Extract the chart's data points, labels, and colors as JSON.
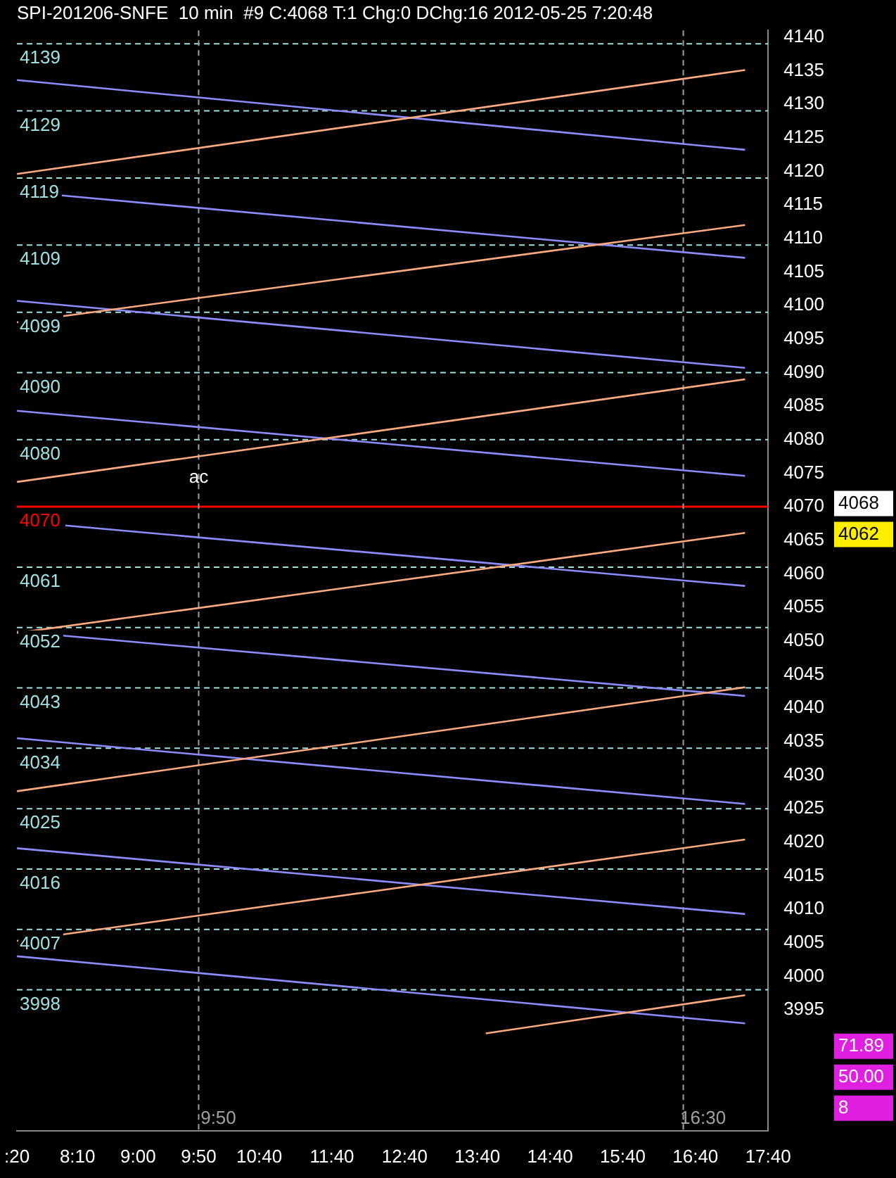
{
  "chart_data": {
    "type": "line",
    "title": "SPI-201206-SNFE  10 min  #9 C:4068 T:1 Chg:0 DChg:16 2012-05-25 7:20:48",
    "xlim": [
      "2012-05-25T07:20",
      "2012-05-25T17:40"
    ],
    "xticks": [
      {
        "value": "2012-05-25T07:20",
        "label": ":20"
      },
      {
        "value": "2012-05-25T08:10",
        "label": "8:10"
      },
      {
        "value": "2012-05-25T09:00",
        "label": "9:00"
      },
      {
        "value": "2012-05-25T09:50",
        "label": "9:50"
      },
      {
        "value": "2012-05-25T10:40",
        "label": "10:40"
      },
      {
        "value": "2012-05-25T11:40",
        "label": "11:40"
      },
      {
        "value": "2012-05-25T12:40",
        "label": "12:40"
      },
      {
        "value": "2012-05-25T13:40",
        "label": "13:40"
      },
      {
        "value": "2012-05-25T14:40",
        "label": "14:40"
      },
      {
        "value": "2012-05-25T15:40",
        "label": "15:40"
      },
      {
        "value": "2012-05-25T16:40",
        "label": "16:40"
      },
      {
        "value": "2012-05-25T17:40",
        "label": "17:40"
      }
    ],
    "ylim": [
      3977,
      4141
    ],
    "yticks": [
      3995,
      4000,
      4005,
      4010,
      4015,
      4020,
      4025,
      4030,
      4035,
      4040,
      4045,
      4050,
      4055,
      4060,
      4065,
      4070,
      4075,
      4080,
      4085,
      4090,
      4095,
      4100,
      4105,
      4110,
      4115,
      4120,
      4125,
      4130,
      4135,
      4140
    ],
    "grid": false,
    "legend": false,
    "line_style": "solid",
    "series": [
      {
        "color": "#ffaa80",
        "x": [
          "2012-05-25T07:20",
          "2012-05-25T17:21"
        ],
        "values": [
          4119.6,
          4135.1
        ]
      },
      {
        "color": "#ffaa80",
        "x": [
          "2012-05-25T07:20",
          "2012-05-25T17:21"
        ],
        "values": [
          4097.5,
          4112
        ]
      },
      {
        "color": "#ffaa80",
        "x": [
          "2012-05-25T07:20",
          "2012-05-25T17:21"
        ],
        "values": [
          4073.7,
          4089
        ]
      },
      {
        "color": "#ffaa80",
        "x": [
          "2012-05-25T07:20",
          "2012-05-25T17:21"
        ],
        "values": [
          4051.2,
          4066.1
        ]
      },
      {
        "color": "#ffaa80",
        "x": [
          "2012-05-25T07:20",
          "2012-05-25T17:21"
        ],
        "values": [
          4027.6,
          4043.1
        ]
      },
      {
        "color": "#ffaa80",
        "x": [
          "2012-05-25T07:20",
          "2012-05-25T17:21"
        ],
        "values": [
          4005.3,
          4020.4
        ]
      },
      {
        "color": "#ffaa80",
        "x": [
          "2012-05-25T13:47",
          "2012-05-25T17:21"
        ],
        "values": [
          3991.5,
          3997.2
        ]
      },
      {
        "color": "#8c8cff",
        "x": [
          "2012-05-25T07:20",
          "2012-05-25T17:21"
        ],
        "values": [
          4133.6,
          4123.2
        ]
      },
      {
        "color": "#8c8cff",
        "x": [
          "2012-05-25T07:57",
          "2012-05-25T17:21"
        ],
        "values": [
          4116.4,
          4107.1
        ]
      },
      {
        "color": "#8c8cff",
        "x": [
          "2012-05-25T07:20",
          "2012-05-25T17:21"
        ],
        "values": [
          4100.7,
          4090.7
        ]
      },
      {
        "color": "#8c8cff",
        "x": [
          "2012-05-25T07:20",
          "2012-05-25T17:21"
        ],
        "values": [
          4084.3,
          4074.6
        ]
      },
      {
        "color": "#8c8cff",
        "x": [
          "2012-05-25T08:00",
          "2012-05-25T17:21"
        ],
        "values": [
          4067.2,
          4058.2
        ]
      },
      {
        "color": "#8c8cff",
        "x": [
          "2012-05-25T07:20",
          "2012-05-25T17:21"
        ],
        "values": [
          4051.4,
          4041.8
        ]
      },
      {
        "color": "#8c8cff",
        "x": [
          "2012-05-25T07:20",
          "2012-05-25T17:21"
        ],
        "values": [
          4035.5,
          4025.7
        ]
      },
      {
        "color": "#8c8cff",
        "x": [
          "2012-05-25T07:20",
          "2012-05-25T17:21"
        ],
        "values": [
          4019.1,
          4009.3
        ]
      },
      {
        "color": "#8c8cff",
        "x": [
          "2012-05-25T07:20",
          "2012-05-25T17:21"
        ],
        "values": [
          4003,
          3993
        ]
      }
    ],
    "ref_lines": [
      {
        "axis": "y",
        "value": 4139,
        "label": "4139",
        "color": "#a0e0e0",
        "line_style": "dashed"
      },
      {
        "axis": "y",
        "value": 4129,
        "label": "4129",
        "color": "#a0e0e0",
        "line_style": "dashed"
      },
      {
        "axis": "y",
        "value": 4119,
        "label": "4119",
        "color": "#a0e0e0",
        "line_style": "dashed"
      },
      {
        "axis": "y",
        "value": 4109,
        "label": "4109",
        "color": "#a0e0e0",
        "line_style": "dashed"
      },
      {
        "axis": "y",
        "value": 4099,
        "label": "4099",
        "color": "#a0e0e0",
        "line_style": "dashed"
      },
      {
        "axis": "y",
        "value": 4090,
        "label": "4090",
        "color": "#a0e0e0",
        "line_style": "dashed"
      },
      {
        "axis": "y",
        "value": 4080,
        "label": "4080",
        "color": "#a0e0e0",
        "line_style": "dashed"
      },
      {
        "axis": "y",
        "value": 4070,
        "label": "4070",
        "color": "#ff0000",
        "line_style": "solid"
      },
      {
        "axis": "y",
        "value": 4061,
        "label": "4061",
        "color": "#a0e0e0",
        "line_style": "dashed"
      },
      {
        "axis": "y",
        "value": 4052,
        "label": "4052",
        "color": "#a0e0e0",
        "line_style": "dashed"
      },
      {
        "axis": "y",
        "value": 4043,
        "label": "4043",
        "color": "#a0e0e0",
        "line_style": "dashed"
      },
      {
        "axis": "y",
        "value": 4034,
        "label": "4034",
        "color": "#a0e0e0",
        "line_style": "dashed"
      },
      {
        "axis": "y",
        "value": 4025,
        "label": "4025",
        "color": "#a0e0e0",
        "line_style": "dashed"
      },
      {
        "axis": "y",
        "value": 4016,
        "label": "4016",
        "color": "#a0e0e0",
        "line_style": "dashed"
      },
      {
        "axis": "y",
        "value": 4007,
        "label": "4007",
        "color": "#a0e0e0",
        "line_style": "dashed"
      },
      {
        "axis": "y",
        "value": 3998,
        "label": "3998",
        "color": "#a0e0e0",
        "line_style": "dashed"
      },
      {
        "axis": "x",
        "value": "2012-05-25T09:50",
        "label": "9:50",
        "color": "#a0a0a0",
        "line_style": "dashed"
      },
      {
        "axis": "x",
        "value": "2012-05-25T16:30",
        "label": "16:30",
        "color": "#a0a0a0",
        "line_style": "dashed"
      }
    ],
    "annotations": [
      {
        "text": "ac",
        "x": "2012-05-25T09:50",
        "y": 4073
      },
      "4068",
      "4062",
      "71.89",
      "50.00",
      "8"
    ]
  }
}
